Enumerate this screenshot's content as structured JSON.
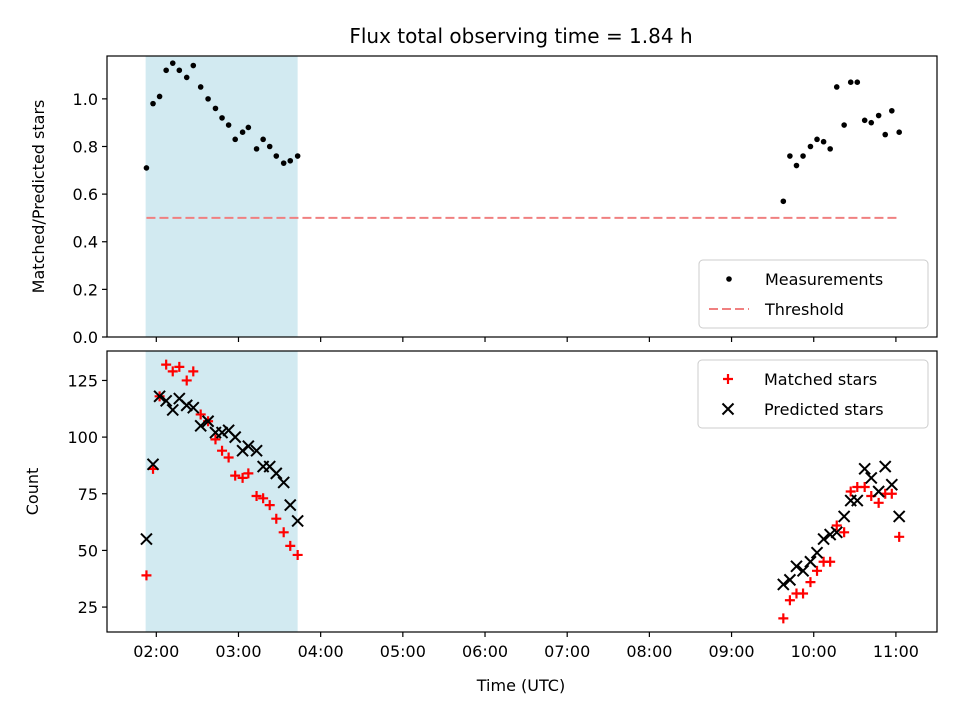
{
  "chart_data": {
    "title": "Flux total observing time = 1.84 h",
    "xlabel": "Time (UTC)",
    "x_axis": {
      "type": "time",
      "tick_values": [
        2,
        3,
        4,
        5,
        6,
        7,
        8,
        9,
        10,
        11
      ],
      "tick_labels": [
        "02:00",
        "03:00",
        "04:00",
        "05:00",
        "06:00",
        "07:00",
        "08:00",
        "09:00",
        "10:00",
        "11:00"
      ],
      "range_hours": [
        1.4,
        11.5
      ]
    },
    "shaded_interval_hours": [
      1.87,
      3.72
    ],
    "shade_color": "#add8e6",
    "panels": [
      {
        "type": "scatter",
        "ylabel": "Matched/Predicted stars",
        "ylim": [
          0,
          1.18
        ],
        "yticks": [
          0,
          0.2,
          0.4,
          0.6,
          0.8,
          1.0
        ],
        "ytick_labels": [
          "0.0",
          "0.2",
          "0.4",
          "0.6",
          "0.8",
          "1.0"
        ],
        "legend_position": "lower-right",
        "series": [
          {
            "name": "Measurements",
            "marker": "dot",
            "color": "#000000",
            "x": [
              1.88,
              1.96,
              2.04,
              2.12,
              2.2,
              2.28,
              2.37,
              2.45,
              2.54,
              2.63,
              2.72,
              2.8,
              2.88,
              2.96,
              3.05,
              3.12,
              3.22,
              3.3,
              3.38,
              3.46,
              3.55,
              3.63,
              3.72,
              9.63,
              9.71,
              9.79,
              9.87,
              9.96,
              10.04,
              10.12,
              10.2,
              10.28,
              10.37,
              10.45,
              10.53,
              10.62,
              10.7,
              10.79,
              10.87,
              10.95,
              11.04
            ],
            "y": [
              0.71,
              0.98,
              1.01,
              1.12,
              1.15,
              1.12,
              1.09,
              1.14,
              1.05,
              1.0,
              0.96,
              0.92,
              0.89,
              0.83,
              0.86,
              0.88,
              0.79,
              0.83,
              0.8,
              0.76,
              0.73,
              0.74,
              0.76,
              0.57,
              0.76,
              0.72,
              0.76,
              0.8,
              0.83,
              0.82,
              0.79,
              1.05,
              0.89,
              1.07,
              1.07,
              0.91,
              0.9,
              0.93,
              0.85,
              0.95,
              0.86
            ]
          },
          {
            "name": "Threshold",
            "type": "line",
            "style": "dashed",
            "color": "#f08080",
            "x": [
              1.88,
              11.04
            ],
            "y": [
              0.5,
              0.5
            ]
          }
        ]
      },
      {
        "type": "scatter",
        "ylabel": "Count",
        "ylim": [
          14,
          138
        ],
        "yticks": [
          25,
          50,
          75,
          100,
          125
        ],
        "ytick_labels": [
          "25",
          "50",
          "75",
          "100",
          "125"
        ],
        "legend_position": "upper-right",
        "series": [
          {
            "name": "Matched stars",
            "marker": "plus",
            "color": "#ff0000",
            "x": [
              1.88,
              1.96,
              2.04,
              2.12,
              2.2,
              2.28,
              2.37,
              2.45,
              2.54,
              2.63,
              2.72,
              2.8,
              2.88,
              2.96,
              3.05,
              3.12,
              3.22,
              3.3,
              3.38,
              3.46,
              3.55,
              3.63,
              3.72,
              9.63,
              9.71,
              9.79,
              9.87,
              9.96,
              10.04,
              10.12,
              10.2,
              10.28,
              10.37,
              10.45,
              10.53,
              10.62,
              10.7,
              10.79,
              10.87,
              10.95,
              11.04
            ],
            "y": [
              39,
              86,
              118,
              132,
              129,
              131,
              125,
              129,
              110,
              107,
              99,
              94,
              91,
              83,
              82,
              84,
              74,
              73,
              70,
              64,
              58,
              52,
              48,
              20,
              28,
              31,
              31,
              36,
              41,
              45,
              45,
              61,
              58,
              76,
              78,
              78,
              74,
              71,
              75,
              75,
              56
            ]
          },
          {
            "name": "Predicted stars",
            "marker": "x",
            "color": "#000000",
            "x": [
              1.88,
              1.96,
              2.04,
              2.12,
              2.2,
              2.28,
              2.37,
              2.45,
              2.54,
              2.63,
              2.72,
              2.8,
              2.88,
              2.96,
              3.05,
              3.12,
              3.22,
              3.3,
              3.38,
              3.46,
              3.55,
              3.63,
              3.72,
              9.63,
              9.71,
              9.79,
              9.87,
              9.96,
              10.04,
              10.12,
              10.2,
              10.28,
              10.37,
              10.45,
              10.53,
              10.62,
              10.7,
              10.79,
              10.87,
              10.95,
              11.04
            ],
            "y": [
              55,
              88,
              118,
              116,
              112,
              117,
              114,
              113,
              105,
              107,
              102,
              102,
              103,
              100,
              94,
              96,
              94,
              87,
              87,
              84,
              80,
              70,
              63,
              35,
              37,
              43,
              41,
              45,
              49,
              55,
              57,
              58,
              65,
              72,
              72,
              86,
              82,
              76,
              87,
              79,
              65
            ]
          }
        ]
      }
    ]
  }
}
